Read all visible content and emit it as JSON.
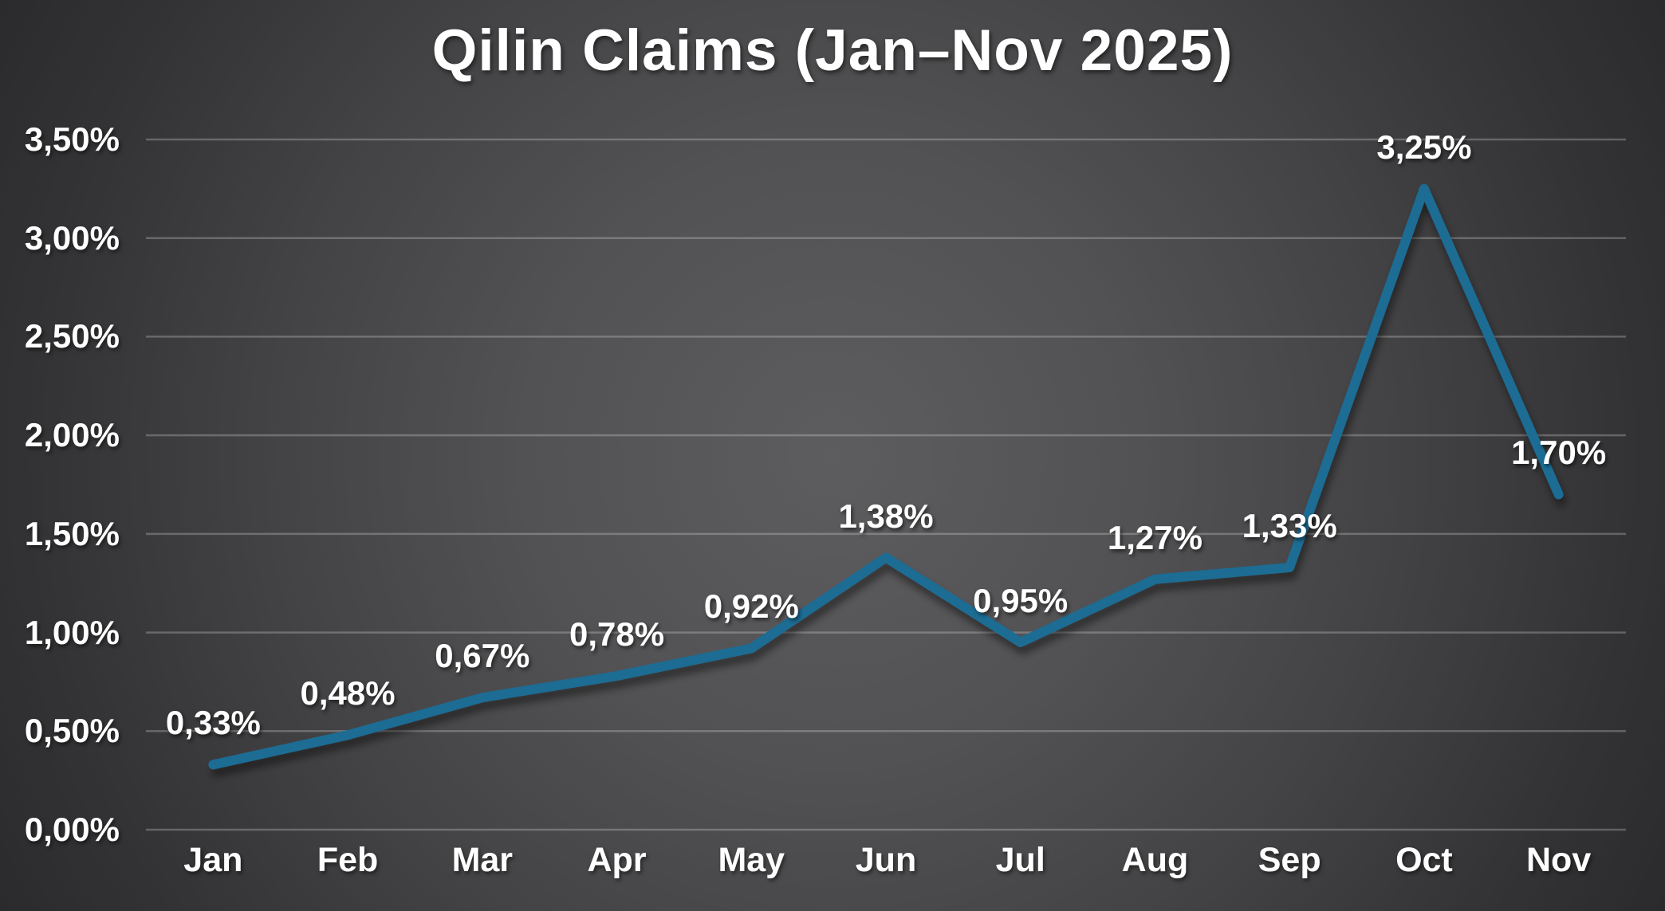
{
  "chart_data": {
    "type": "line",
    "title": "Qilin Claims (Jan–Nov 2025)",
    "categories": [
      "Jan",
      "Feb",
      "Mar",
      "Apr",
      "May",
      "Jun",
      "Jul",
      "Aug",
      "Sep",
      "Oct",
      "Nov"
    ],
    "values": [
      0.33,
      0.48,
      0.67,
      0.78,
      0.92,
      1.38,
      0.95,
      1.27,
      1.33,
      3.25,
      1.7
    ],
    "data_labels": [
      "0,33%",
      "0,48%",
      "0,67%",
      "0,78%",
      "0,92%",
      "1,38%",
      "0,95%",
      "1,27%",
      "1,33%",
      "3,25%",
      "1,70%"
    ],
    "y_ticks": [
      "0,00%",
      "0,50%",
      "1,00%",
      "1,50%",
      "2,00%",
      "2,50%",
      "3,00%",
      "3,50%"
    ],
    "ylim": [
      0,
      3.5
    ],
    "xlabel": "",
    "ylabel": "",
    "grid": true,
    "legend_position": "none",
    "colors": {
      "line": "#1F6C94",
      "text": "#FFFFFF",
      "gridline": "rgba(255,255,255,0.24)",
      "background_center": "#5A5A5C",
      "background_edge": "#262628"
    }
  }
}
